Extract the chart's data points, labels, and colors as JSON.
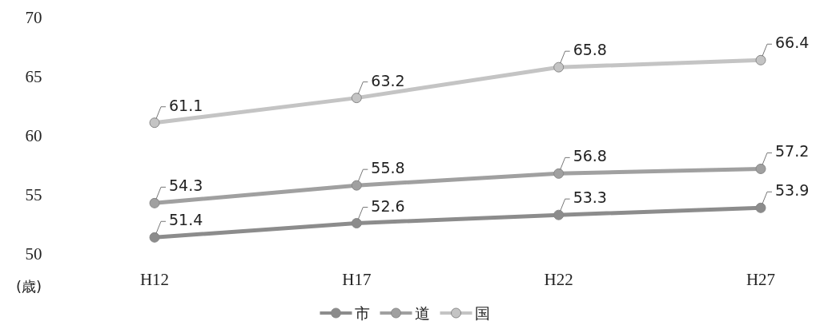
{
  "chart_data": {
    "type": "line",
    "ylabel": "(歳)",
    "categories": [
      "H12",
      "H17",
      "H22",
      "H27"
    ],
    "series": [
      {
        "name": "市",
        "color": "#8c8c8c",
        "values": [
          51.4,
          52.6,
          53.3,
          53.9
        ]
      },
      {
        "name": "道",
        "color": "#a0a0a0",
        "values": [
          54.3,
          55.8,
          56.8,
          57.2
        ]
      },
      {
        "name": "国",
        "color": "#c4c4c4",
        "values": [
          61.1,
          63.2,
          65.8,
          66.4
        ]
      }
    ],
    "ylim": [
      50,
      70
    ],
    "yticks": [
      50,
      55,
      60,
      65,
      70
    ],
    "data_labels": true,
    "marker": "circle",
    "legend": "bottom",
    "grid": false
  }
}
